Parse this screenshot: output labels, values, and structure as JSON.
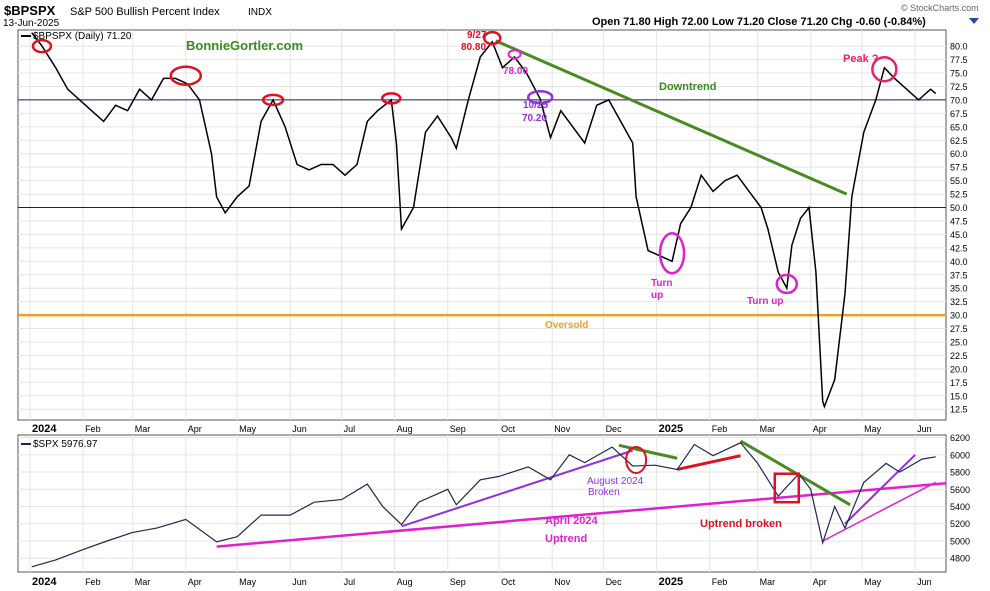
{
  "header": {
    "symbol": "$BPSPX",
    "name": "S&P 500 Bullish Percent Index",
    "exchange": "INDX",
    "date": "13-Jun-2025",
    "ohlc": "Open 71.80  High 72.00  Low 71.20  Close 71.20  Chg -0.60 (-0.84%)",
    "watermark": "© StockCharts.com"
  },
  "colors": {
    "price": "#000000",
    "green_line": "#4a8a22",
    "red_mark": "#e01020",
    "magenta": "#e020d0",
    "purple": "#9030e0",
    "orange": "#f0a020",
    "navy": "#1a1a70",
    "spx_line": "#1a2a50"
  },
  "chart_data": [
    {
      "type": "line",
      "title": "$BPSPX (Daily) 71.20",
      "source_label": "BonnieGortler.com",
      "x_tick_labels": [
        "2024",
        "Feb",
        "Mar",
        "Apr",
        "May",
        "Jun",
        "Jul",
        "Aug",
        "Sep",
        "Oct",
        "Nov",
        "Dec",
        "2025",
        "Feb",
        "Mar",
        "Apr",
        "May",
        "Jun"
      ],
      "y_ticks": [
        12.5,
        15.0,
        17.5,
        20.0,
        22.5,
        25.0,
        27.5,
        30.0,
        32.5,
        35.0,
        37.5,
        40.0,
        42.5,
        45.0,
        47.5,
        50.0,
        52.5,
        55.0,
        57.5,
        60.0,
        62.5,
        65.0,
        67.5,
        70.0,
        72.5,
        75.0,
        77.5,
        80.0
      ],
      "ylim": [
        10.5,
        83
      ],
      "horizontal_lines": [
        70,
        50,
        30
      ],
      "series": [
        {
          "values": [
            [
              "2024-01-02",
              82.5
            ],
            [
              "2024-01-08",
              80
            ],
            [
              "2024-01-16",
              76
            ],
            [
              "2024-01-23",
              72
            ],
            [
              "2024-01-30",
              70
            ],
            [
              "2024-02-06",
              68
            ],
            [
              "2024-02-13",
              66
            ],
            [
              "2024-02-20",
              69
            ],
            [
              "2024-02-27",
              68
            ],
            [
              "2024-03-05",
              72
            ],
            [
              "2024-03-12",
              70
            ],
            [
              "2024-03-19",
              74
            ],
            [
              "2024-03-26",
              74
            ],
            [
              "2024-04-02",
              73
            ],
            [
              "2024-04-09",
              70
            ],
            [
              "2024-04-16",
              60
            ],
            [
              "2024-04-19",
              52
            ],
            [
              "2024-04-24",
              49
            ],
            [
              "2024-05-01",
              52
            ],
            [
              "2024-05-08",
              54
            ],
            [
              "2024-05-15",
              66
            ],
            [
              "2024-05-22",
              70
            ],
            [
              "2024-05-29",
              65
            ],
            [
              "2024-06-05",
              58
            ],
            [
              "2024-06-12",
              57
            ],
            [
              "2024-06-19",
              58
            ],
            [
              "2024-06-26",
              58
            ],
            [
              "2024-07-03",
              56
            ],
            [
              "2024-07-10",
              58
            ],
            [
              "2024-07-16",
              66
            ],
            [
              "2024-07-22",
              68
            ],
            [
              "2024-07-30",
              70
            ],
            [
              "2024-08-02",
              62
            ],
            [
              "2024-08-05",
              46
            ],
            [
              "2024-08-12",
              50
            ],
            [
              "2024-08-19",
              64
            ],
            [
              "2024-08-26",
              67
            ],
            [
              "2024-09-03",
              63
            ],
            [
              "2024-09-06",
              61
            ],
            [
              "2024-09-13",
              70
            ],
            [
              "2024-09-20",
              78
            ],
            [
              "2024-09-27",
              80.8
            ],
            [
              "2024-10-03",
              76
            ],
            [
              "2024-10-10",
              78
            ],
            [
              "2024-10-17",
              75
            ],
            [
              "2024-10-25",
              70.2
            ],
            [
              "2024-10-31",
              63
            ],
            [
              "2024-11-06",
              68
            ],
            [
              "2024-11-13",
              65
            ],
            [
              "2024-11-20",
              62
            ],
            [
              "2024-11-27",
              69
            ],
            [
              "2024-12-04",
              70
            ],
            [
              "2024-12-11",
              66
            ],
            [
              "2024-12-18",
              62
            ],
            [
              "2024-12-20",
              52
            ],
            [
              "2024-12-27",
              42
            ],
            [
              "2025-01-03",
              41
            ],
            [
              "2025-01-10",
              40
            ],
            [
              "2025-01-15",
              47
            ],
            [
              "2025-01-21",
              50
            ],
            [
              "2025-01-27",
              56
            ],
            [
              "2025-02-03",
              53
            ],
            [
              "2025-02-10",
              55
            ],
            [
              "2025-02-17",
              56
            ],
            [
              "2025-02-24",
              53
            ],
            [
              "2025-03-03",
              50
            ],
            [
              "2025-03-07",
              46
            ],
            [
              "2025-03-13",
              38
            ],
            [
              "2025-03-18",
              35
            ],
            [
              "2025-03-21",
              43
            ],
            [
              "2025-03-26",
              48
            ],
            [
              "2025-03-31",
              50
            ],
            [
              "2025-04-04",
              38
            ],
            [
              "2025-04-08",
              14
            ],
            [
              "2025-04-09",
              13
            ],
            [
              "2025-04-15",
              18
            ],
            [
              "2025-04-21",
              34
            ],
            [
              "2025-04-25",
              52
            ],
            [
              "2025-05-02",
              64
            ],
            [
              "2025-05-09",
              70
            ],
            [
              "2025-05-14",
              76
            ],
            [
              "2025-05-20",
              74
            ],
            [
              "2025-05-27",
              72
            ],
            [
              "2025-06-03",
              70
            ],
            [
              "2025-06-10",
              72
            ],
            [
              "2025-06-13",
              71.2
            ]
          ]
        }
      ],
      "annotations": {
        "high_date": "9/27",
        "high_value": "80.80",
        "mid_value": "78.00",
        "low_date": "10/25",
        "low_value": "70.20",
        "downtrend": "Downtrend",
        "oversold": "Oversold",
        "turn_up": "Turn up",
        "turn_up_1": "Turn",
        "turn_up_2": "up",
        "peak": "Peak ?"
      }
    },
    {
      "type": "line",
      "title": "$SPX 5976.97",
      "x_tick_labels": [
        "2024",
        "Feb",
        "Mar",
        "Apr",
        "May",
        "Jun",
        "Jul",
        "Aug",
        "Sep",
        "Oct",
        "Nov",
        "Dec",
        "2025",
        "Feb",
        "Mar",
        "Apr",
        "May",
        "Jun"
      ],
      "y_ticks": [
        4800,
        5000,
        5200,
        5400,
        5600,
        5800,
        6000,
        6200
      ],
      "ylim": [
        4640,
        6230
      ],
      "series": [
        {
          "values": [
            [
              "2024-01-02",
              4700
            ],
            [
              "2024-01-16",
              4780
            ],
            [
              "2024-02-01",
              4900
            ],
            [
              "2024-02-15",
              5000
            ],
            [
              "2024-03-01",
              5100
            ],
            [
              "2024-03-15",
              5150
            ],
            [
              "2024-04-01",
              5250
            ],
            [
              "2024-04-19",
              4990
            ],
            [
              "2024-05-01",
              5050
            ],
            [
              "2024-05-15",
              5300
            ],
            [
              "2024-06-01",
              5300
            ],
            [
              "2024-06-15",
              5450
            ],
            [
              "2024-07-01",
              5480
            ],
            [
              "2024-07-16",
              5660
            ],
            [
              "2024-07-25",
              5400
            ],
            [
              "2024-08-05",
              5190
            ],
            [
              "2024-08-15",
              5450
            ],
            [
              "2024-09-01",
              5600
            ],
            [
              "2024-09-06",
              5420
            ],
            [
              "2024-09-20",
              5710
            ],
            [
              "2024-10-01",
              5750
            ],
            [
              "2024-10-18",
              5860
            ],
            [
              "2024-10-31",
              5710
            ],
            [
              "2024-11-11",
              6000
            ],
            [
              "2024-11-20",
              5910
            ],
            [
              "2024-12-06",
              6090
            ],
            [
              "2024-12-18",
              5870
            ],
            [
              "2024-12-31",
              5880
            ],
            [
              "2025-01-13",
              5830
            ],
            [
              "2025-01-23",
              6120
            ],
            [
              "2025-02-03",
              5990
            ],
            [
              "2025-02-19",
              6140
            ],
            [
              "2025-03-01",
              5900
            ],
            [
              "2025-03-13",
              5520
            ],
            [
              "2025-03-25",
              5780
            ],
            [
              "2025-04-01",
              5600
            ],
            [
              "2025-04-08",
              4980
            ],
            [
              "2025-04-15",
              5400
            ],
            [
              "2025-04-21",
              5150
            ],
            [
              "2025-05-02",
              5680
            ],
            [
              "2025-05-15",
              5900
            ],
            [
              "2025-05-23",
              5800
            ],
            [
              "2025-06-05",
              5950
            ],
            [
              "2025-06-13",
              5977
            ]
          ]
        }
      ],
      "annotations": {
        "april_label_1": "April 2024",
        "april_label_2": "Uptrend",
        "august_label_1": "August 2024",
        "august_label_2": "Broken",
        "uptrend_broken": "Uptrend broken"
      }
    }
  ]
}
